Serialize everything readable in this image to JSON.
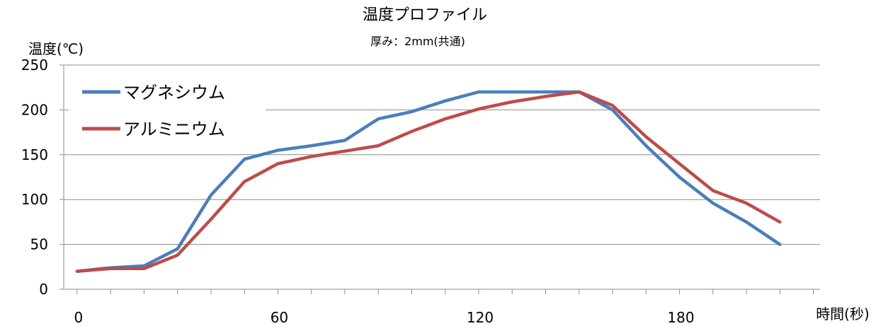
{
  "chart_data": {
    "type": "line",
    "title": "温度プロファイル",
    "subtitle": "厚み：2mm(共通)",
    "xlabel": "時間(秒)",
    "ylabel": "温度(℃)",
    "xlim": [
      -4,
      222
    ],
    "ylim": [
      0,
      250
    ],
    "x_ticks": [
      0,
      60,
      120,
      180
    ],
    "y_ticks": [
      0,
      50,
      100,
      150,
      200,
      250
    ],
    "x_minor_step": 10,
    "grid": true,
    "legend_position": "top-left",
    "x": [
      0,
      10,
      20,
      30,
      40,
      50,
      60,
      70,
      80,
      90,
      100,
      110,
      120,
      130,
      140,
      150,
      160,
      170,
      180,
      190,
      200,
      210
    ],
    "series": [
      {
        "name": "マグネシウム",
        "color": "#4a7ebb",
        "values": [
          20,
          24,
          26,
          45,
          105,
          145,
          155,
          160,
          166,
          190,
          198,
          210,
          220,
          220,
          220,
          220,
          200,
          160,
          125,
          96,
          75,
          50
        ]
      },
      {
        "name": "アルミニウム",
        "color": "#be4b48",
        "values": [
          20,
          23,
          23,
          38,
          78,
          120,
          140,
          148,
          154,
          160,
          176,
          190,
          201,
          209,
          215,
          220,
          205,
          170,
          140,
          110,
          96,
          75
        ]
      }
    ]
  }
}
